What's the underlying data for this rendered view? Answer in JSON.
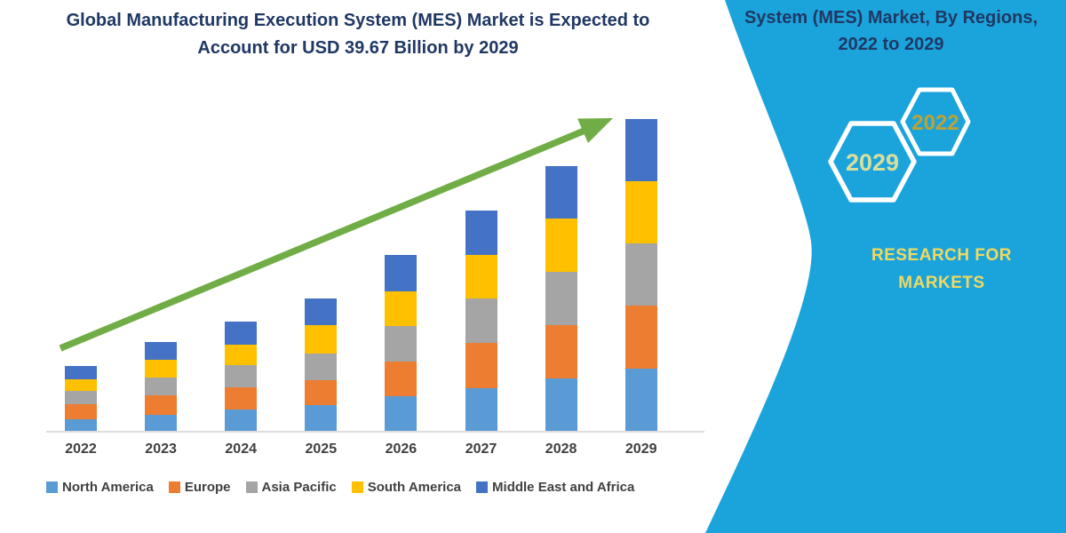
{
  "chart": {
    "title_line1": "Global Manufacturing Execution System (MES) Market is Expected to",
    "title_line2": "Account for USD 39.67 Billion by 2029",
    "title_color": "#1F3864"
  },
  "chart_data": {
    "type": "bar",
    "stacked": true,
    "title": "Global Manufacturing Execution System (MES) Market is Expected to Account for USD 39.67 Billion by 2029",
    "unit": "USD Billion",
    "categories": [
      "2022",
      "2023",
      "2024",
      "2025",
      "2026",
      "2027",
      "2028",
      "2029"
    ],
    "series": [
      {
        "name": "North America",
        "color": "#5B9BD5",
        "values": [
          1.6,
          2.1,
          2.8,
          3.4,
          4.5,
          5.5,
          6.8,
          8.0
        ]
      },
      {
        "name": "Europe",
        "color": "#ED7D31",
        "values": [
          1.9,
          2.5,
          2.8,
          3.2,
          4.4,
          5.8,
          6.8,
          8.0
        ]
      },
      {
        "name": "Asia Pacific",
        "color": "#A5A5A5",
        "values": [
          1.7,
          2.3,
          2.8,
          3.4,
          4.5,
          5.7,
          6.8,
          7.9
        ]
      },
      {
        "name": "South America",
        "color": "#FFC000",
        "values": [
          1.5,
          2.3,
          2.6,
          3.6,
          4.4,
          5.5,
          6.8,
          7.9
        ]
      },
      {
        "name": "Middle East and Africa",
        "color": "#4472C4",
        "values": [
          1.7,
          2.3,
          2.9,
          3.4,
          4.6,
          5.7,
          6.7,
          7.87
        ]
      }
    ],
    "totals": [
      8.4,
      11.5,
      13.9,
      17.0,
      22.4,
      28.2,
      33.9,
      39.67
    ],
    "ylim": [
      0,
      40
    ],
    "grid": false,
    "legend_position": "bottom",
    "trend_arrow": true,
    "trend_arrow_color": "#70AD47",
    "axis_line_color": "#DCDCDC"
  },
  "side_panel": {
    "bg_color": "#1BA4DC",
    "heading_line1": "System (MES) Market, By Regions,",
    "heading_line2": "2022 to 2029",
    "heading_color": "#1F3864",
    "hex_badges": [
      {
        "label": "2029",
        "text_color": "#D8DF9C"
      },
      {
        "label": "2022",
        "text_color": "#BEA232"
      }
    ],
    "brand_line1": "RESEARCH FOR",
    "brand_line2": "MARKETS",
    "brand_color": "#F0D95F"
  }
}
